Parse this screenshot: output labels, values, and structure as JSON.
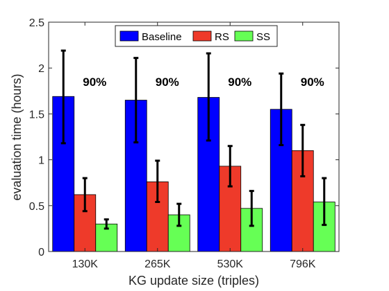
{
  "chart_data": {
    "type": "bar",
    "categories": [
      "130K",
      "265K",
      "530K",
      "796K"
    ],
    "series": [
      {
        "name": "Baseline",
        "color": "#0000ff",
        "values": [
          1.69,
          1.65,
          1.68,
          1.55
        ],
        "err_low": [
          1.18,
          1.19,
          1.21,
          1.16
        ],
        "err_high": [
          2.19,
          2.11,
          2.16,
          1.94
        ]
      },
      {
        "name": "RS",
        "color": "#ee3a2a",
        "values": [
          0.62,
          0.76,
          0.93,
          1.1
        ],
        "err_low": [
          0.44,
          0.54,
          0.71,
          0.82
        ],
        "err_high": [
          0.8,
          0.99,
          1.15,
          1.38
        ]
      },
      {
        "name": "SS",
        "color": "#66ff55",
        "values": [
          0.3,
          0.4,
          0.47,
          0.54
        ],
        "err_low": [
          0.25,
          0.28,
          0.28,
          0.29
        ],
        "err_high": [
          0.35,
          0.52,
          0.66,
          0.8
        ]
      }
    ],
    "annotations": [
      "90%",
      "90%",
      "90%",
      "90%"
    ],
    "xlabel": "KG update size (triples)",
    "ylabel": "evaluation time (hours)",
    "ylim": [
      0,
      2.5
    ],
    "yticks": [
      0,
      0.5,
      1,
      1.5,
      2,
      2.5
    ],
    "ytick_labels": [
      "0",
      "0.5",
      "1",
      "1.5",
      "2",
      "2.5"
    ],
    "grid": false,
    "legend_position": "top-center"
  }
}
